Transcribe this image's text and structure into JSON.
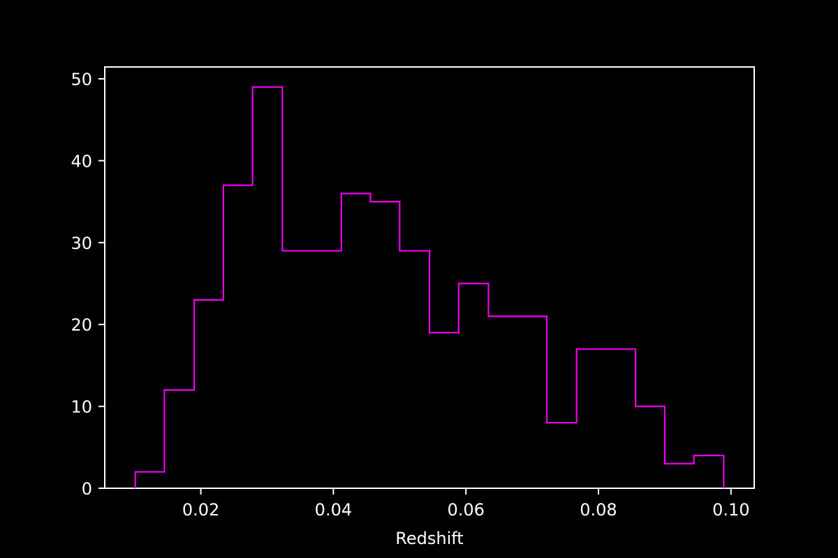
{
  "chart_data": {
    "type": "histogram",
    "title": "",
    "xlabel": "Redshift",
    "ylabel": "",
    "xlim": [
      0.0055,
      0.1035
    ],
    "ylim": [
      0,
      51.45
    ],
    "xticks": [
      0.02,
      0.04,
      0.06,
      0.08,
      0.1
    ],
    "xtick_labels": [
      "0.02",
      "0.04",
      "0.06",
      "0.08",
      "0.10"
    ],
    "yticks": [
      0,
      10,
      20,
      30,
      40,
      50
    ],
    "ytick_labels": [
      "0",
      "10",
      "20",
      "30",
      "40",
      "50"
    ],
    "bin_edges": [
      0.0101,
      0.0145,
      0.019,
      0.0234,
      0.0278,
      0.0323,
      0.0367,
      0.0412,
      0.0456,
      0.05,
      0.0545,
      0.0589,
      0.0634,
      0.0678,
      0.0722,
      0.0767,
      0.0811,
      0.0856,
      0.09,
      0.0944,
      0.0989
    ],
    "counts": [
      2,
      12,
      23,
      37,
      49,
      29,
      29,
      36,
      35,
      29,
      19,
      25,
      21,
      21,
      8,
      17,
      17,
      10,
      3,
      4
    ],
    "histtype": "step",
    "grid": false,
    "colors": {
      "background": "#000000",
      "axes": "#ffffff",
      "text": "#ffffff",
      "series": "#ee00ee"
    }
  }
}
